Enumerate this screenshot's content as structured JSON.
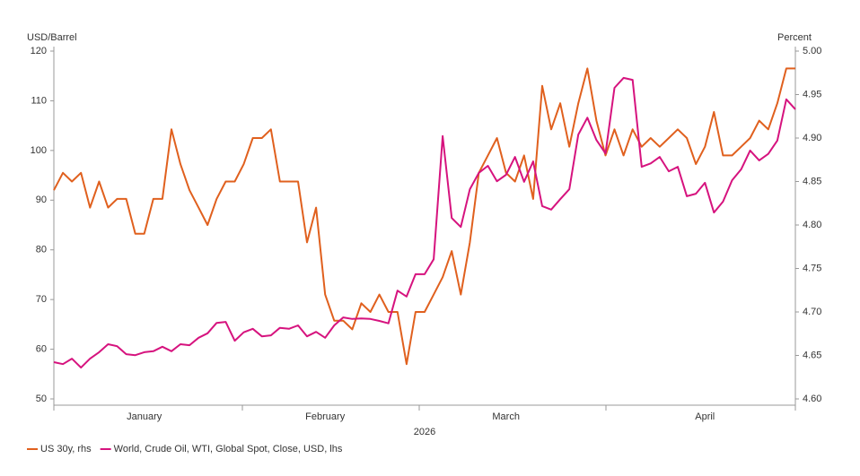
{
  "chart_data": {
    "type": "line",
    "y_label": "USD/Barrel",
    "y2_label": "Percent",
    "x_label": "2026",
    "categories": [
      null,
      null,
      null,
      null,
      null,
      null,
      null,
      null,
      null,
      null,
      "January",
      null,
      null,
      null,
      null,
      null,
      null,
      null,
      null,
      null,
      null,
      null,
      null,
      null,
      null,
      null,
      null,
      null,
      null,
      null,
      "February",
      null,
      null,
      null,
      null,
      null,
      null,
      null,
      null,
      null,
      null,
      null,
      null,
      null,
      null,
      null,
      null,
      null,
      null,
      null,
      "March",
      null,
      null,
      null,
      null,
      null,
      null,
      null,
      null,
      null,
      null,
      null,
      null,
      null,
      null,
      null,
      null,
      null,
      null,
      null,
      null,
      null,
      "April",
      null,
      null,
      null,
      null,
      null,
      null,
      null,
      null,
      null,
      null
    ],
    "series": [
      {
        "name": "US 30y, rhs",
        "color": "#e0601e",
        "axis": "y2",
        "values": [
          4.84,
          4.86,
          4.85,
          4.86,
          4.82,
          4.85,
          4.82,
          4.83,
          4.83,
          4.79,
          4.79,
          4.83,
          4.83,
          4.91,
          4.87,
          4.84,
          4.82,
          4.8,
          4.83,
          4.85,
          4.85,
          4.87,
          4.9,
          4.9,
          4.91,
          4.85,
          4.85,
          4.85,
          4.78,
          4.82,
          4.72,
          4.69,
          4.69,
          4.68,
          4.71,
          4.7,
          4.72,
          4.7,
          4.7,
          4.64,
          4.7,
          4.7,
          4.72,
          4.74,
          4.77,
          4.72,
          4.78,
          4.86,
          4.88,
          4.9,
          4.86,
          4.85,
          4.88,
          4.83,
          4.96,
          4.91,
          4.94,
          4.89,
          4.94,
          4.98,
          4.92,
          4.88,
          4.91,
          4.88,
          4.91,
          4.89,
          4.9,
          4.89,
          4.9,
          4.91,
          4.9,
          4.87,
          4.89,
          4.93,
          4.88,
          4.88,
          4.89,
          4.9,
          4.92,
          4.91,
          4.94,
          4.98,
          4.98
        ]
      },
      {
        "name": "World, Crude Oil, WTI, Global Spot, Close, USD, lhs",
        "color": "#d6137e",
        "values": [
          57.4,
          57.0,
          58.1,
          56.3,
          58.1,
          59.4,
          61.0,
          60.6,
          59.0,
          58.8,
          59.4,
          59.6,
          60.5,
          59.6,
          61.0,
          60.8,
          62.3,
          63.2,
          65.3,
          65.5,
          61.7,
          63.4,
          64.1,
          62.6,
          62.8,
          64.3,
          64.1,
          64.8,
          62.6,
          63.5,
          62.3,
          64.8,
          66.4,
          66.1,
          66.2,
          66.1,
          65.7,
          65.2,
          71.8,
          70.6,
          75.1,
          75.1,
          78.1,
          102.9,
          86.4,
          84.6,
          92.2,
          95.5,
          96.9,
          93.8,
          95.1,
          98.7,
          93.7,
          97.8,
          88.8,
          88.1,
          90.2,
          92.2,
          103.2,
          106.6,
          102.1,
          99.4,
          112.6,
          114.6,
          114.2,
          96.7,
          97.4,
          98.7,
          95.8,
          96.7,
          90.8,
          91.3,
          93.5,
          87.5,
          89.7,
          94.0,
          96.2,
          100.0,
          98.0,
          99.3,
          102.0,
          110.3,
          108.3
        ]
      }
    ],
    "ylim": [
      50,
      120
    ],
    "yticks": [
      50,
      60,
      70,
      80,
      90,
      100,
      110,
      120
    ],
    "y2lim": [
      4.6,
      5.0
    ],
    "y2ticks": [
      {
        "value": 4.6,
        "label": "4.60"
      },
      4.65,
      {
        "value": 4.7,
        "label": "4.70"
      },
      4.75,
      {
        "value": 4.8,
        "label": "4.80"
      },
      4.85,
      {
        "value": 4.9,
        "label": "4.90"
      },
      4.95,
      {
        "value": 5.0,
        "label": "5.00"
      }
    ],
    "grid": false,
    "legend": "bottom-left"
  }
}
